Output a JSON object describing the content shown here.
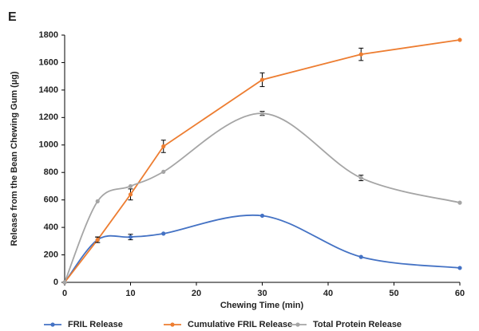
{
  "chart_data": {
    "type": "line",
    "panel_label": "E",
    "x_label": "Chewing Time (min)",
    "y_label": "Release from the Bean Chewing Gum (µg)",
    "x": [
      0,
      5,
      10,
      15,
      30,
      45,
      60
    ],
    "series": [
      {
        "name": "FRIL Release",
        "color": "#4472c4",
        "smooth": true,
        "values": [
          0,
          310,
          330,
          355,
          485,
          185,
          105
        ],
        "errors": [
          null,
          20,
          20,
          null,
          null,
          null,
          null
        ]
      },
      {
        "name": "Cumulative FRIL Release",
        "color": "#ed7d31",
        "smooth": false,
        "values": [
          0,
          310,
          640,
          990,
          1475,
          1660,
          1765
        ],
        "errors": [
          null,
          20,
          40,
          45,
          50,
          45,
          null
        ]
      },
      {
        "name": "Total Protein Release",
        "color": "#a5a5a5",
        "smooth": true,
        "values": [
          0,
          590,
          700,
          805,
          1230,
          760,
          580
        ],
        "errors": [
          null,
          null,
          null,
          null,
          15,
          20,
          null
        ]
      }
    ],
    "xlim": [
      0,
      60
    ],
    "xticks": [
      0,
      10,
      20,
      30,
      40,
      50,
      60
    ],
    "ylim": [
      0,
      1800
    ],
    "yticks": [
      0,
      200,
      400,
      600,
      800,
      1000,
      1200,
      1400,
      1600,
      1800
    ],
    "legend": "bottom"
  }
}
